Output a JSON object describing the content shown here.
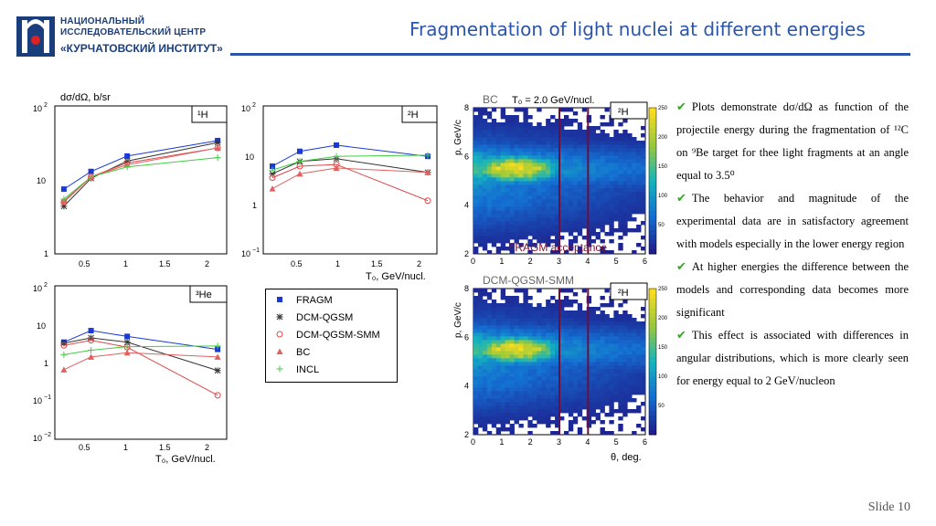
{
  "header": {
    "logo_line1": "НАЦИОНАЛЬНЫЙ",
    "logo_line2": "ИССЛЕДОВАТЕЛЬСКИЙ ЦЕНТР",
    "logo_line3": "«КУРЧАТОВСКИЙ ИНСТИТУТ»",
    "title": "Fragmentation of light nuclei at different energies",
    "accent_color": "#2a55a8"
  },
  "plots": {
    "ylabel": "dσ/dΩ, b/sr",
    "xlabel": "T₀, GeV/nucl.",
    "h1_label": "¹H",
    "h2_label": "²H",
    "he3_label": "³He"
  },
  "legend": {
    "items": [
      "FRAGM",
      "DCM-QGSM",
      "DCM-QGSM-SMM",
      "BC",
      "INCL"
    ]
  },
  "heatmaps": {
    "top_title": "BC",
    "top_energy": "T₀ = 2.0 GeV/nucl.",
    "top_label": "²H",
    "acceptance": "FRAGM acceptance",
    "bottom_title": "DCM-QGSM-SMM",
    "bottom_label": "²H",
    "ylabel": "p, GeV/c",
    "xlabel": "θ, deg."
  },
  "bullets": {
    "b1": "Plots demonstrate dσ/dΩ as function of the projectile energy during the fragmentation of ¹²C on ⁹Be target for thee light fragments at an angle equal to 3.5⁰",
    "b2": "The behavior and magnitude of the experimental data are in satisfactory agreement with models especially in the lower energy region",
    "b3": "At higher energies the difference between the models and corresponding data becomes more significant",
    "b4": "This effect is associated with differences in angular distributions, which is more clearly seen for energy equal to 2 GeV/nucleon"
  },
  "footer": {
    "slide": "Slide 10"
  },
  "chart_data": [
    {
      "type": "line",
      "panel": "¹H",
      "ylabel": "dσ/dΩ, b/sr",
      "y_scale": "log",
      "ylim": [
        1,
        100
      ],
      "xlim": [
        0.2,
        2.1
      ],
      "series": [
        {
          "name": "FRAGM",
          "x": [
            0.3,
            0.6,
            1.0,
            2.0
          ],
          "y": [
            7.5,
            13,
            21,
            34
          ]
        },
        {
          "name": "DCM-QGSM",
          "x": [
            0.3,
            0.6,
            1.0,
            2.0
          ],
          "y": [
            4.4,
            10.5,
            18,
            32
          ]
        },
        {
          "name": "DCM-QGSM-SMM",
          "x": [
            0.3,
            0.6,
            1.0,
            2.0
          ],
          "y": [
            5,
            11,
            17,
            27
          ]
        },
        {
          "name": "BC",
          "x": [
            0.3,
            0.6,
            1.0,
            2.0
          ],
          "y": [
            5.2,
            11,
            16,
            27
          ]
        },
        {
          "name": "INCL",
          "x": [
            0.3,
            0.6,
            1.0,
            2.0
          ],
          "y": [
            5.5,
            11,
            15,
            20
          ]
        }
      ]
    },
    {
      "type": "line",
      "panel": "²H",
      "xlabel": "T₀, GeV/nucl.",
      "y_scale": "log",
      "ylim": [
        0.1,
        100
      ],
      "xlim": [
        0.2,
        2.1
      ],
      "series": [
        {
          "name": "FRAGM",
          "x": [
            0.3,
            0.6,
            1.0,
            2.0
          ],
          "y": [
            6,
            12,
            16,
            9.5
          ]
        },
        {
          "name": "DCM-QGSM",
          "x": [
            0.3,
            0.6,
            1.0,
            2.0
          ],
          "y": [
            4.2,
            7.5,
            8.5,
            4.5
          ]
        },
        {
          "name": "DCM-QGSM-SMM",
          "x": [
            0.3,
            0.6,
            1.0,
            2.0
          ],
          "y": [
            3.5,
            6,
            6.5,
            1.2
          ]
        },
        {
          "name": "BC",
          "x": [
            0.3,
            0.6,
            1.0,
            2.0
          ],
          "y": [
            2.1,
            4.2,
            5.5,
            4.5
          ]
        },
        {
          "name": "INCL",
          "x": [
            0.3,
            0.6,
            1.0,
            2.0
          ],
          "y": [
            5,
            7.5,
            9.5,
            10
          ]
        }
      ]
    },
    {
      "type": "line",
      "panel": "³He",
      "xlabel": "T₀, GeV/nucl.",
      "y_scale": "log",
      "ylim": [
        0.01,
        100
      ],
      "xlim": [
        0.2,
        2.1
      ],
      "series": [
        {
          "name": "FRAGM",
          "x": [
            0.3,
            0.6,
            1.0,
            2.0
          ],
          "y": [
            3.4,
            6.8,
            4.8,
            2.2
          ]
        },
        {
          "name": "DCM-QGSM",
          "x": [
            0.3,
            0.6,
            1.0,
            2.0
          ],
          "y": [
            3.2,
            4.4,
            3.4,
            0.62
          ]
        },
        {
          "name": "DCM-QGSM-SMM",
          "x": [
            0.3,
            0.6,
            1.0,
            2.0
          ],
          "y": [
            2.8,
            3.8,
            2.5,
            0.14
          ]
        },
        {
          "name": "BC",
          "x": [
            0.3,
            0.6,
            1.0,
            2.0
          ],
          "y": [
            0.65,
            1.4,
            1.8,
            1.4
          ]
        },
        {
          "name": "INCL",
          "x": [
            0.3,
            0.6,
            1.0,
            2.0
          ],
          "y": [
            1.6,
            2.1,
            2.6,
            2.7
          ]
        }
      ]
    },
    {
      "type": "heatmap",
      "panel": "BC ²H",
      "xlabel": "θ, deg.",
      "ylabel": "p, GeV/c",
      "xlim": [
        0,
        6
      ],
      "ylim": [
        2,
        8
      ],
      "colorbar": [
        0,
        250
      ],
      "colorbar_ticks": [
        50,
        100,
        150,
        200,
        250
      ],
      "acceptance_lines": [
        3,
        4
      ]
    },
    {
      "type": "heatmap",
      "panel": "DCM-QGSM-SMM ²H",
      "xlabel": "θ, deg.",
      "ylabel": "p, GeV/c",
      "xlim": [
        0,
        6
      ],
      "ylim": [
        2,
        8
      ],
      "colorbar": [
        0,
        250
      ],
      "colorbar_ticks": [
        50,
        100,
        150,
        200,
        250
      ],
      "acceptance_lines": [
        3,
        4
      ]
    }
  ]
}
